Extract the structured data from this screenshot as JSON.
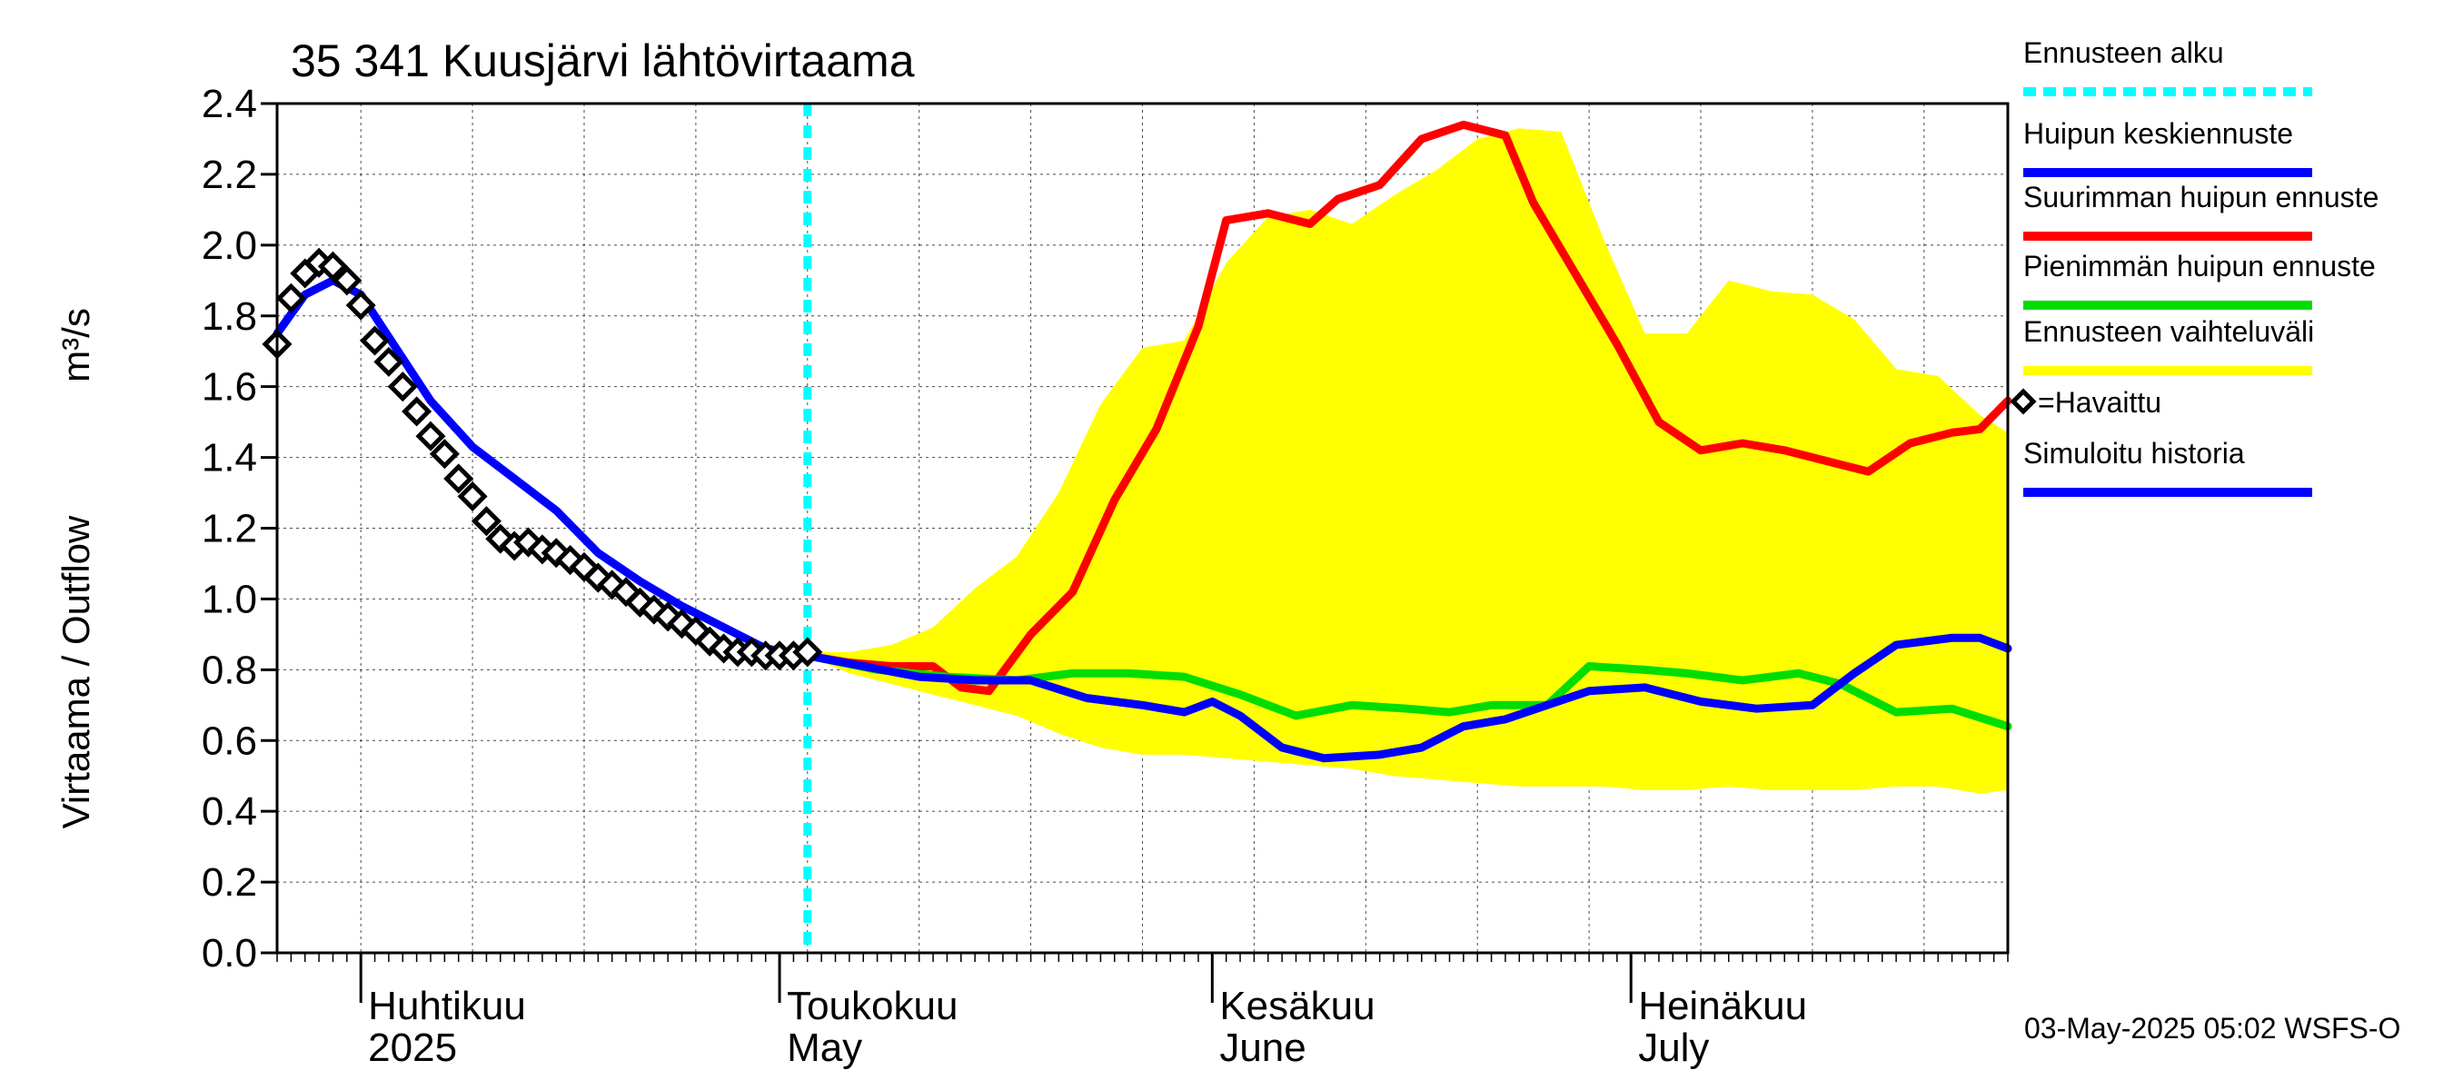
{
  "chart_data": {
    "type": "line",
    "title": "35 341 Kuusjärvi lähtövirtaama",
    "ylabel": "Virtaama / Outflow",
    "yunit": "m³/s",
    "ylim": [
      0.0,
      2.4
    ],
    "yticks": [
      "0.0",
      "0.2",
      "0.4",
      "0.6",
      "0.8",
      "1.0",
      "1.2",
      "1.4",
      "1.6",
      "1.8",
      "2.0",
      "2.2",
      "2.4"
    ],
    "xlim": [
      "2025-03-26",
      "2025-07-28"
    ],
    "x_month_labels": [
      {
        "fi": "Huhtikuu",
        "en": "2025",
        "date": "2025-04-01"
      },
      {
        "fi": "Toukokuu",
        "en": "May",
        "date": "2025-05-01"
      },
      {
        "fi": "Kesäkuu",
        "en": "June",
        "date": "2025-06-01"
      },
      {
        "fi": "Heinäkuu",
        "en": "July",
        "date": "2025-07-01"
      }
    ],
    "grid": true,
    "legend_position": "right",
    "forecast_start": "2025-05-03",
    "band": {
      "name": "Ennusteen vaihteluväli",
      "color": "#ffff00",
      "x": [
        "2025-05-03",
        "2025-05-06",
        "2025-05-09",
        "2025-05-12",
        "2025-05-15",
        "2025-05-18",
        "2025-05-21",
        "2025-05-24",
        "2025-05-27",
        "2025-05-30",
        "2025-06-02",
        "2025-06-05",
        "2025-06-08",
        "2025-06-11",
        "2025-06-14",
        "2025-06-17",
        "2025-06-20",
        "2025-06-23",
        "2025-06-26",
        "2025-06-29",
        "2025-07-02",
        "2025-07-05",
        "2025-07-08",
        "2025-07-11",
        "2025-07-14",
        "2025-07-17",
        "2025-07-20",
        "2025-07-23",
        "2025-07-26",
        "2025-07-28"
      ],
      "upper": [
        0.85,
        0.85,
        0.87,
        0.92,
        1.03,
        1.12,
        1.3,
        1.55,
        1.71,
        1.73,
        1.95,
        2.08,
        2.1,
        2.06,
        2.14,
        2.21,
        2.3,
        2.33,
        2.32,
        2.02,
        1.75,
        1.75,
        1.9,
        1.87,
        1.86,
        1.79,
        1.65,
        1.63,
        1.52,
        1.47
      ],
      "lower": [
        0.84,
        0.79,
        0.76,
        0.73,
        0.7,
        0.67,
        0.62,
        0.58,
        0.56,
        0.56,
        0.55,
        0.54,
        0.53,
        0.52,
        0.5,
        0.49,
        0.48,
        0.47,
        0.47,
        0.47,
        0.46,
        0.46,
        0.47,
        0.46,
        0.46,
        0.46,
        0.47,
        0.47,
        0.45,
        0.46
      ]
    },
    "series": [
      {
        "name": "Suurimman huipun ennuste",
        "color": "#ff0000",
        "x": [
          "2025-05-03",
          "2025-05-06",
          "2025-05-09",
          "2025-05-12",
          "2025-05-14",
          "2025-05-16",
          "2025-05-19",
          "2025-05-22",
          "2025-05-25",
          "2025-05-28",
          "2025-05-31",
          "2025-06-02",
          "2025-06-05",
          "2025-06-08",
          "2025-06-10",
          "2025-06-13",
          "2025-06-16",
          "2025-06-19",
          "2025-06-22",
          "2025-06-24",
          "2025-06-27",
          "2025-06-30",
          "2025-07-03",
          "2025-07-06",
          "2025-07-09",
          "2025-07-12",
          "2025-07-15",
          "2025-07-18",
          "2025-07-21",
          "2025-07-24",
          "2025-07-26",
          "2025-07-28"
        ],
        "values": [
          0.84,
          0.82,
          0.81,
          0.81,
          0.75,
          0.74,
          0.9,
          1.02,
          1.28,
          1.48,
          1.77,
          2.07,
          2.09,
          2.06,
          2.13,
          2.17,
          2.3,
          2.34,
          2.31,
          2.12,
          1.92,
          1.72,
          1.5,
          1.42,
          1.44,
          1.42,
          1.39,
          1.36,
          1.44,
          1.47,
          1.48,
          1.56
        ]
      },
      {
        "name": "Pienimmän huipun ennuste",
        "color": "#00dd00",
        "x": [
          "2025-05-03",
          "2025-05-08",
          "2025-05-13",
          "2025-05-18",
          "2025-05-22",
          "2025-05-26",
          "2025-05-30",
          "2025-06-03",
          "2025-06-07",
          "2025-06-11",
          "2025-06-15",
          "2025-06-18",
          "2025-06-21",
          "2025-06-25",
          "2025-06-28",
          "2025-07-02",
          "2025-07-05",
          "2025-07-09",
          "2025-07-13",
          "2025-07-16",
          "2025-07-20",
          "2025-07-24",
          "2025-07-28"
        ],
        "values": [
          0.84,
          0.8,
          0.78,
          0.77,
          0.79,
          0.79,
          0.78,
          0.73,
          0.67,
          0.7,
          0.69,
          0.68,
          0.7,
          0.7,
          0.81,
          0.8,
          0.79,
          0.77,
          0.79,
          0.76,
          0.68,
          0.69,
          0.64
        ]
      },
      {
        "name": "Huipun keskiennuste",
        "color": "#0000ff",
        "x": [
          "2025-03-26",
          "2025-03-28",
          "2025-03-30",
          "2025-04-01",
          "2025-04-03",
          "2025-04-06",
          "2025-04-09",
          "2025-04-12",
          "2025-04-15",
          "2025-04-18",
          "2025-04-21",
          "2025-04-24",
          "2025-04-27",
          "2025-04-30",
          "2025-05-03",
          "2025-05-07",
          "2025-05-11",
          "2025-05-15",
          "2025-05-19",
          "2025-05-23",
          "2025-05-27",
          "2025-05-30",
          "2025-06-01",
          "2025-06-03",
          "2025-06-06",
          "2025-06-09",
          "2025-06-13",
          "2025-06-16",
          "2025-06-19",
          "2025-06-22",
          "2025-06-25",
          "2025-06-28",
          "2025-07-02",
          "2025-07-06",
          "2025-07-10",
          "2025-07-14",
          "2025-07-17",
          "2025-07-20",
          "2025-07-24",
          "2025-07-26",
          "2025-07-28"
        ],
        "values": [
          1.75,
          1.86,
          1.9,
          1.86,
          1.74,
          1.56,
          1.43,
          1.34,
          1.25,
          1.13,
          1.05,
          0.98,
          0.92,
          0.86,
          0.84,
          0.81,
          0.78,
          0.77,
          0.77,
          0.72,
          0.7,
          0.68,
          0.71,
          0.67,
          0.58,
          0.55,
          0.56,
          0.58,
          0.64,
          0.66,
          0.7,
          0.74,
          0.75,
          0.71,
          0.69,
          0.7,
          0.79,
          0.87,
          0.89,
          0.89,
          0.86
        ]
      }
    ],
    "observed": {
      "name": "=Havaittu",
      "x": [
        "2025-03-26",
        "2025-03-27",
        "2025-03-28",
        "2025-03-29",
        "2025-03-30",
        "2025-03-31",
        "2025-04-01",
        "2025-04-02",
        "2025-04-03",
        "2025-04-04",
        "2025-04-05",
        "2025-04-06",
        "2025-04-07",
        "2025-04-08",
        "2025-04-09",
        "2025-04-10",
        "2025-04-11",
        "2025-04-12",
        "2025-04-13",
        "2025-04-14",
        "2025-04-15",
        "2025-04-16",
        "2025-04-17",
        "2025-04-18",
        "2025-04-19",
        "2025-04-20",
        "2025-04-21",
        "2025-04-22",
        "2025-04-23",
        "2025-04-24",
        "2025-04-25",
        "2025-04-26",
        "2025-04-27",
        "2025-04-28",
        "2025-04-29",
        "2025-04-30",
        "2025-05-01",
        "2025-05-02",
        "2025-05-03"
      ],
      "values": [
        1.72,
        1.85,
        1.92,
        1.95,
        1.94,
        1.9,
        1.83,
        1.73,
        1.67,
        1.6,
        1.53,
        1.46,
        1.41,
        1.34,
        1.29,
        1.22,
        1.17,
        1.15,
        1.16,
        1.14,
        1.13,
        1.11,
        1.09,
        1.06,
        1.04,
        1.02,
        0.99,
        0.97,
        0.95,
        0.93,
        0.91,
        0.88,
        0.86,
        0.85,
        0.85,
        0.84,
        0.84,
        0.84,
        0.85
      ]
    },
    "legend": [
      {
        "label": "Ennusteen alku",
        "color": "#00ffff",
        "style": "dashed"
      },
      {
        "label": "Huipun keskiennuste",
        "color": "#0000ff",
        "style": "solid"
      },
      {
        "label": "Suurimman huipun ennuste",
        "color": "#ff0000",
        "style": "solid"
      },
      {
        "label": "Pienimmän huipun ennuste",
        "color": "#00dd00",
        "style": "solid"
      },
      {
        "label": "Ennusteen vaihteluväli",
        "color": "#ffff00",
        "style": "solid"
      },
      {
        "label": "=Havaittu",
        "color": "#000000",
        "style": "marker"
      },
      {
        "label": "Simuloitu historia",
        "color": "#0000ff",
        "style": "solid"
      }
    ],
    "footer": "03-May-2025 05:02 WSFS-O"
  }
}
